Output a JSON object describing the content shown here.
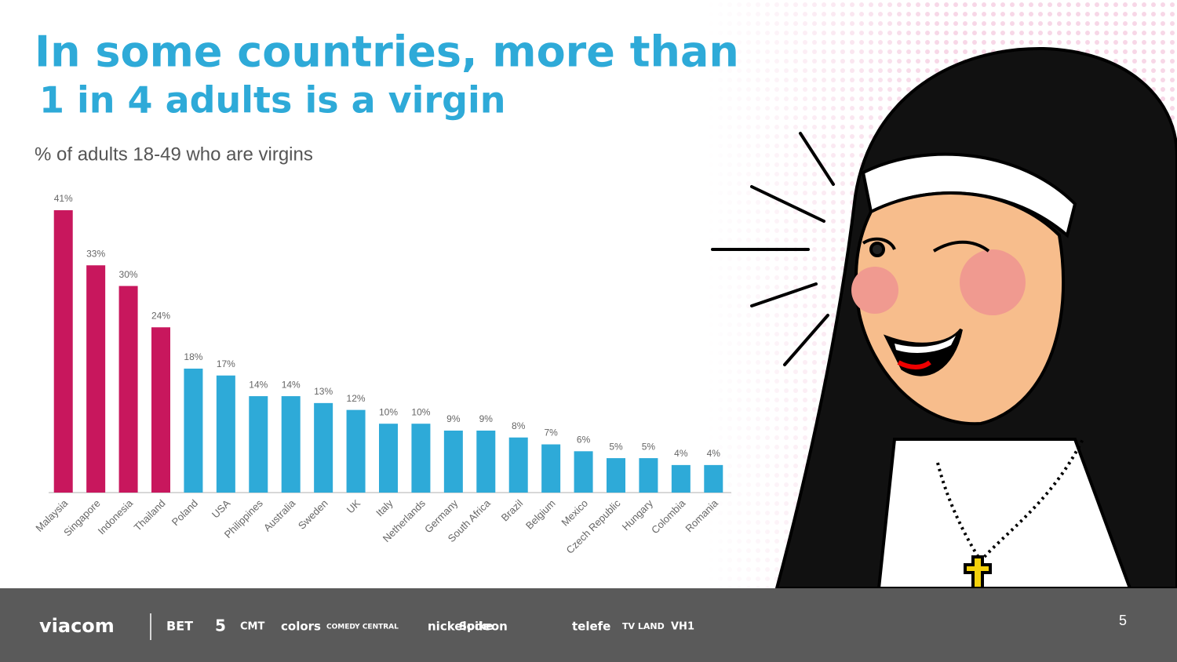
{
  "chart_data": {
    "type": "bar",
    "title": "In some countries, more than",
    "title_line2": "1 in 4 adults is a virgin",
    "subtitle": "% of adults 18-49 who are virgins",
    "categories": [
      "Malaysia",
      "Singapore",
      "Indonesia",
      "Thailand",
      "Poland",
      "USA",
      "Philippines",
      "Australia",
      "Sweden",
      "UK",
      "Italy",
      "Netherlands",
      "Germany",
      "South Africa",
      "Brazil",
      "Belgium",
      "Mexico",
      "Czech Republic",
      "Hungary",
      "Colombia",
      "Romania"
    ],
    "values": [
      41,
      33,
      30,
      24,
      18,
      17,
      14,
      14,
      13,
      12,
      10,
      10,
      9,
      9,
      8,
      7,
      6,
      5,
      5,
      4,
      4
    ],
    "value_labels": [
      "41%",
      "33%",
      "30%",
      "24%",
      "18%",
      "17%",
      "14%",
      "14%",
      "13%",
      "12%",
      "10%",
      "10%",
      "9%",
      "9%",
      "8%",
      "7%",
      "6%",
      "5%",
      "5%",
      "4%",
      "4%"
    ],
    "colors": [
      "#c8175d",
      "#c8175d",
      "#c8175d",
      "#c8175d",
      "#2eaad8",
      "#2eaad8",
      "#2eaad8",
      "#2eaad8",
      "#2eaad8",
      "#2eaad8",
      "#2eaad8",
      "#2eaad8",
      "#2eaad8",
      "#2eaad8",
      "#2eaad8",
      "#2eaad8",
      "#2eaad8",
      "#2eaad8",
      "#2eaad8",
      "#2eaad8",
      "#2eaad8"
    ]
  },
  "footer": {
    "logos": [
      "viacom",
      "BET",
      "5",
      "CMT",
      "colors",
      "COMEDY CENTRAL",
      "nickelodeon",
      "Spike",
      "telefe",
      "TV LAND",
      "VH1"
    ],
    "page_number": "5"
  }
}
